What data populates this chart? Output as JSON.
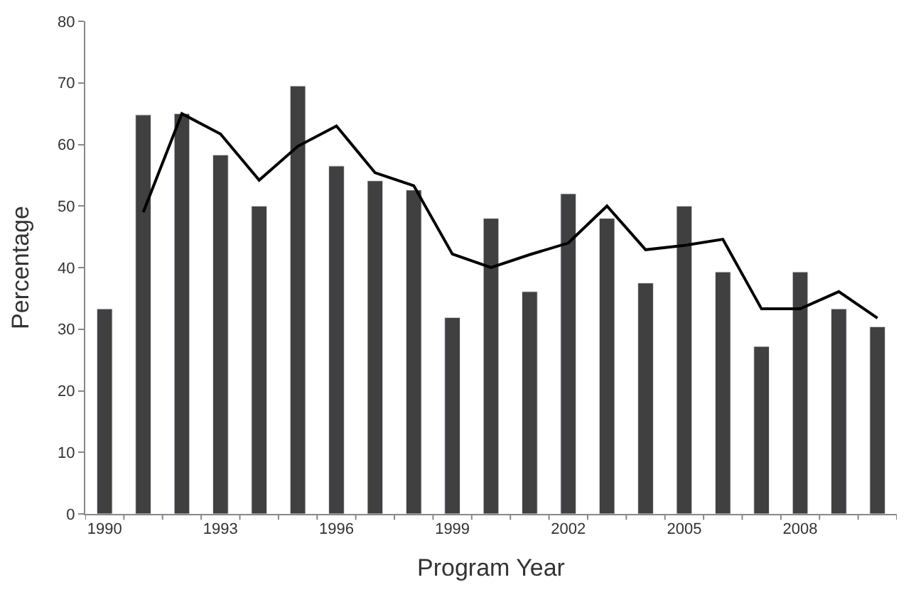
{
  "chart_data": {
    "type": "bar",
    "xlabel": "Program Year",
    "ylabel": "Percentage",
    "categories": [
      "1990",
      null,
      null,
      "1993",
      null,
      null,
      "1996",
      null,
      null,
      "1999",
      null,
      null,
      "2002",
      null,
      null,
      "2005",
      null,
      null,
      "2008",
      null,
      null
    ],
    "series": [
      {
        "color": "#404040",
        "values": [
          33.3,
          64.8,
          65,
          58.3,
          50,
          69.5,
          56.5,
          54.1,
          52.6,
          31.9,
          48,
          36.1,
          52,
          48,
          37.5,
          50,
          39.3,
          27.2,
          39.3,
          33.3,
          30.4
        ]
      },
      {
        "type": "line",
        "color": "#000000",
        "values": [
          null,
          49,
          65,
          61.7,
          54.2,
          59.7,
          63,
          55.4,
          53.3,
          42.2,
          40,
          42.1,
          44,
          50,
          42.9,
          43.6,
          44.6,
          33.3,
          33.3,
          36.1,
          31.8
        ]
      }
    ],
    "ylim": [
      0,
      80
    ],
    "yticks": [
      0,
      10,
      20,
      30,
      40,
      50,
      60,
      70,
      80
    ],
    "marker": "none",
    "line_style": "solid"
  }
}
